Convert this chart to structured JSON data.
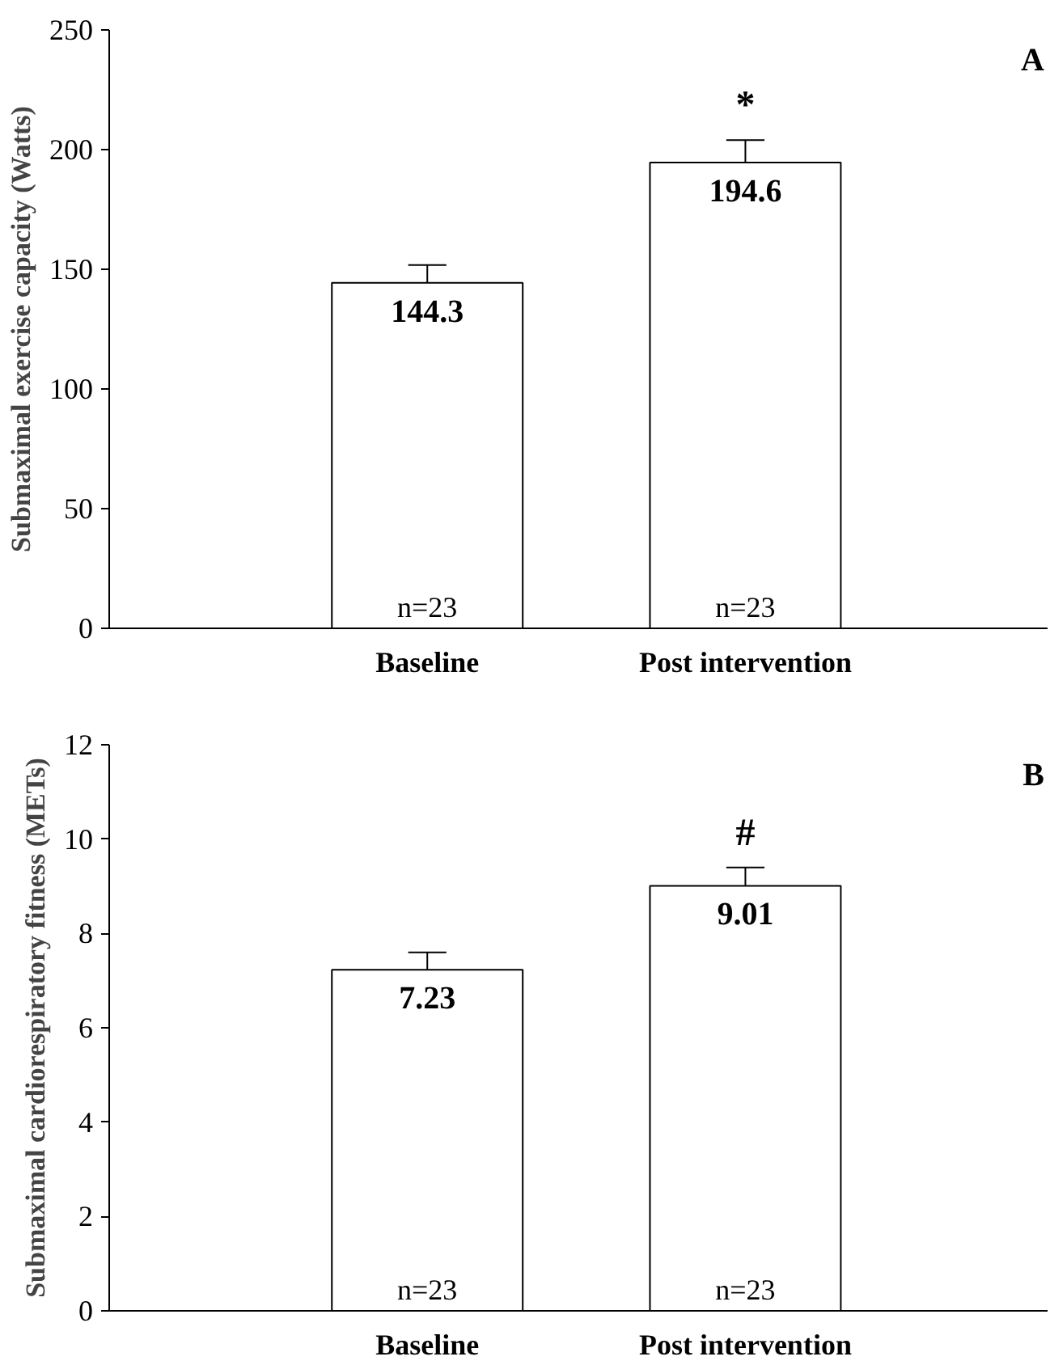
{
  "chart_data": [
    {
      "type": "bar",
      "ylabel": "Submaximal exercise capacity (Watts)",
      "categories": [
        "Baseline",
        "Post intervention"
      ],
      "values": [
        144.3,
        194.6
      ],
      "color": "#ffffff",
      "errors": [
        [
          144.3,
          151.8
        ],
        [
          194.6,
          204.0
        ]
      ],
      "data_labels": true,
      "ylim": [
        0,
        250
      ],
      "yticks": [
        0,
        50,
        100,
        150,
        200,
        250
      ],
      "grid": false,
      "annotations": [
        "A",
        "*",
        "n=23",
        "n=23"
      ]
    },
    {
      "type": "bar",
      "ylabel": "Submaximal cardiorespiratory fitness (METs)",
      "categories": [
        "Baseline",
        "Post intervention"
      ],
      "values": [
        7.23,
        9.01
      ],
      "color": "#ffffff",
      "errors": [
        [
          7.23,
          7.6
        ],
        [
          9.01,
          9.4
        ]
      ],
      "data_labels": true,
      "ylim": [
        0,
        12
      ],
      "yticks": [
        0,
        2,
        4,
        6,
        8,
        10,
        12
      ],
      "grid": false,
      "annotations": [
        "B",
        "#",
        "n=23",
        "n=23"
      ]
    }
  ]
}
